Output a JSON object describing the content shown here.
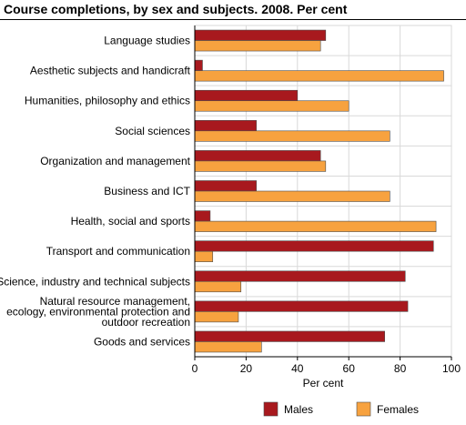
{
  "chart_data": {
    "type": "bar",
    "orientation": "horizontal",
    "title": "Course completions, by sex and subjects. 2008. Per cent",
    "xlabel": "Per cent",
    "ylabel": "",
    "xlim": [
      0,
      100
    ],
    "ticks": [
      "0",
      "20",
      "40",
      "60",
      "80",
      "100"
    ],
    "grid": true,
    "legend_position": "bottom",
    "categories": [
      [
        "Language studies"
      ],
      [
        "Aesthetic subjects and handicraft"
      ],
      [
        "Humanities, philosophy and ethics"
      ],
      [
        "Social sciences"
      ],
      [
        "Organization and management"
      ],
      [
        "Business and ICT"
      ],
      [
        "Health, social and sports"
      ],
      [
        "Transport and communication"
      ],
      [
        "Science, industry and technical subjects"
      ],
      [
        "Natural resource management,",
        "ecology, environmental protection and",
        "outdoor recreation"
      ],
      [
        "Goods and services"
      ]
    ],
    "series": [
      {
        "name": "Males",
        "color": "#a8191e",
        "values": [
          51,
          3,
          40,
          24,
          49,
          24,
          6,
          93,
          82,
          83,
          74
        ]
      },
      {
        "name": "Females",
        "color": "#f7a23f",
        "values": [
          49,
          97,
          60,
          76,
          51,
          76,
          94,
          7,
          18,
          17,
          26
        ]
      }
    ]
  }
}
